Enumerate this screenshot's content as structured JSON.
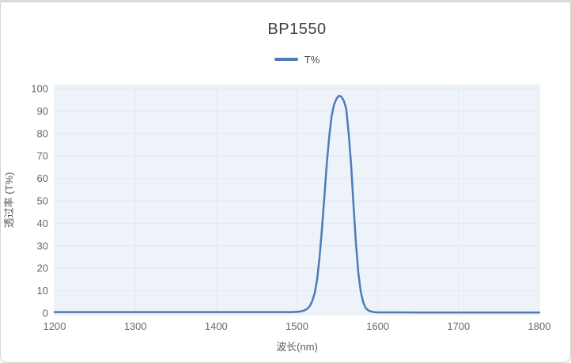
{
  "chart_data": {
    "type": "line",
    "title": "BP1550",
    "legend": [
      "T%"
    ],
    "legend_position": "top",
    "xlabel": "波长(nm)",
    "ylabel": "透过率 (T%)",
    "grid": true,
    "xlim": [
      1200,
      1800
    ],
    "ylim": [
      0,
      100
    ],
    "x_ticks": [
      1200,
      1300,
      1400,
      1500,
      1600,
      1700,
      1800
    ],
    "y_ticks": [
      0,
      10,
      20,
      30,
      40,
      50,
      60,
      70,
      80,
      90,
      100
    ],
    "colors": {
      "plot_bg": "#eef3f9",
      "grid": "#e2e8f0",
      "tick_text": "#5e6a75",
      "title_text": "#3f3f3f",
      "card_border": "#d7d7d7"
    },
    "series": [
      {
        "name": "T%",
        "color": "#4e7bb7",
        "points": [
          [
            1200,
            0.5
          ],
          [
            1250,
            0.5
          ],
          [
            1300,
            0.5
          ],
          [
            1350,
            0.5
          ],
          [
            1400,
            0.5
          ],
          [
            1450,
            0.5
          ],
          [
            1480,
            0.5
          ],
          [
            1495,
            0.5
          ],
          [
            1500,
            0.6
          ],
          [
            1505,
            0.8
          ],
          [
            1509,
            1.2
          ],
          [
            1513,
            2
          ],
          [
            1516,
            3.2
          ],
          [
            1519,
            5.5
          ],
          [
            1522,
            9
          ],
          [
            1525,
            15
          ],
          [
            1528,
            25
          ],
          [
            1531,
            38
          ],
          [
            1534,
            52
          ],
          [
            1537,
            67
          ],
          [
            1540,
            79
          ],
          [
            1543,
            88
          ],
          [
            1546,
            93
          ],
          [
            1549,
            95.6
          ],
          [
            1552,
            96.8
          ],
          [
            1555,
            96.4
          ],
          [
            1558,
            94.5
          ],
          [
            1561,
            91
          ],
          [
            1564,
            80
          ],
          [
            1567,
            66
          ],
          [
            1570,
            48
          ],
          [
            1573,
            31
          ],
          [
            1576,
            18
          ],
          [
            1579,
            9.5
          ],
          [
            1582,
            4.8
          ],
          [
            1585,
            2.4
          ],
          [
            1588,
            1.3
          ],
          [
            1591,
            0.8
          ],
          [
            1595,
            0.5
          ],
          [
            1600,
            0.35
          ],
          [
            1650,
            0.3
          ],
          [
            1700,
            0.3
          ],
          [
            1750,
            0.3
          ],
          [
            1800,
            0.3
          ]
        ]
      }
    ]
  }
}
